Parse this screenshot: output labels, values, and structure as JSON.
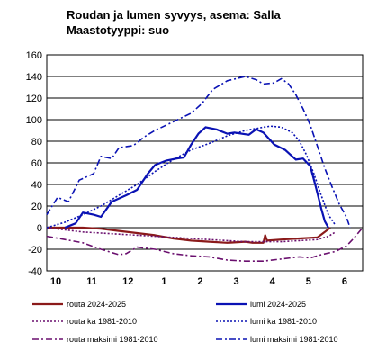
{
  "title": "Roudan ja lumen syvyys, asema: Salla",
  "subtitle": "Maastotyyppi: suo",
  "chart_data": {
    "type": "line",
    "ylim": [
      -40,
      160
    ],
    "yticks": [
      -40,
      -20,
      0,
      20,
      40,
      60,
      80,
      100,
      120,
      140,
      160
    ],
    "xlim": [
      0,
      8.75
    ],
    "xticks": [
      {
        "x": 0,
        "label": "10"
      },
      {
        "x": 1,
        "label": "11"
      },
      {
        "x": 2,
        "label": "12"
      },
      {
        "x": 3,
        "label": "1"
      },
      {
        "x": 4,
        "label": "2"
      },
      {
        "x": 5,
        "label": "3"
      },
      {
        "x": 6,
        "label": "4"
      },
      {
        "x": 7,
        "label": "5"
      },
      {
        "x": 8,
        "label": "6"
      }
    ],
    "grid": "horizontal",
    "legend": "bottom",
    "series": [
      {
        "name": "routa 2024-2025",
        "color": "#8B1A1A",
        "dash": "solid",
        "width": 2.2,
        "points": [
          [
            0,
            0
          ],
          [
            1,
            0
          ],
          [
            1.5,
            -1
          ],
          [
            2,
            -3
          ],
          [
            2.5,
            -5
          ],
          [
            3,
            -7
          ],
          [
            3.5,
            -10
          ],
          [
            4,
            -12
          ],
          [
            4.5,
            -13
          ],
          [
            5,
            -14
          ],
          [
            5.5,
            -13
          ],
          [
            5.7,
            -14
          ],
          [
            6,
            -14
          ],
          [
            6.05,
            -7
          ],
          [
            6.1,
            -12
          ],
          [
            6.5,
            -11
          ],
          [
            7,
            -10
          ],
          [
            7.5,
            -9
          ],
          [
            7.7,
            -4
          ],
          [
            7.85,
            0
          ]
        ]
      },
      {
        "name": "lumi 2024-2025",
        "color": "#0A12B4",
        "dash": "solid",
        "width": 2.2,
        "points": [
          [
            0.5,
            0
          ],
          [
            0.8,
            4
          ],
          [
            1,
            14
          ],
          [
            1.3,
            12
          ],
          [
            1.5,
            10
          ],
          [
            1.8,
            24
          ],
          [
            2.2,
            30
          ],
          [
            2.5,
            35
          ],
          [
            2.8,
            50
          ],
          [
            3,
            58
          ],
          [
            3.3,
            62
          ],
          [
            3.6,
            64
          ],
          [
            3.8,
            65
          ],
          [
            4,
            77
          ],
          [
            4.2,
            87
          ],
          [
            4.4,
            93
          ],
          [
            4.7,
            91
          ],
          [
            5,
            87
          ],
          [
            5.2,
            88
          ],
          [
            5.6,
            86
          ],
          [
            5.8,
            91
          ],
          [
            6,
            88
          ],
          [
            6.3,
            77
          ],
          [
            6.6,
            72
          ],
          [
            6.9,
            63
          ],
          [
            7.1,
            64
          ],
          [
            7.3,
            57
          ],
          [
            7.45,
            38
          ],
          [
            7.6,
            18
          ],
          [
            7.7,
            6
          ],
          [
            7.8,
            0
          ]
        ]
      },
      {
        "name": "routa ka 1981-2010",
        "color": "#6A0F6E",
        "dash": "2,2",
        "width": 1.6,
        "points": [
          [
            0,
            0
          ],
          [
            0.5,
            -2
          ],
          [
            1,
            -4
          ],
          [
            1.5,
            -5
          ],
          [
            2,
            -6
          ],
          [
            2.5,
            -7
          ],
          [
            3,
            -8
          ],
          [
            3.5,
            -9
          ],
          [
            4,
            -10
          ],
          [
            4.5,
            -11
          ],
          [
            5,
            -12
          ],
          [
            5.5,
            -13
          ],
          [
            6,
            -13
          ],
          [
            6.5,
            -13
          ],
          [
            7,
            -12
          ],
          [
            7.5,
            -11
          ],
          [
            7.8,
            -8
          ],
          [
            8,
            -4
          ]
        ]
      },
      {
        "name": "lumi ka 1981-2010",
        "color": "#0A12B4",
        "dash": "2,2",
        "width": 1.6,
        "points": [
          [
            0,
            0
          ],
          [
            0.5,
            5
          ],
          [
            1,
            12
          ],
          [
            1.5,
            20
          ],
          [
            2,
            30
          ],
          [
            2.5,
            40
          ],
          [
            3,
            52
          ],
          [
            3.5,
            63
          ],
          [
            4,
            72
          ],
          [
            4.5,
            78
          ],
          [
            5,
            85
          ],
          [
            5.5,
            90
          ],
          [
            6,
            93
          ],
          [
            6.2,
            94
          ],
          [
            6.5,
            93
          ],
          [
            6.8,
            88
          ],
          [
            7,
            80
          ],
          [
            7.2,
            67
          ],
          [
            7.4,
            50
          ],
          [
            7.6,
            30
          ],
          [
            7.8,
            12
          ],
          [
            8,
            2
          ]
        ]
      },
      {
        "name": "routa maksimi 1981-2010",
        "color": "#6A0F6E",
        "dash": "7,3,2,3",
        "width": 1.6,
        "points": [
          [
            0,
            -8
          ],
          [
            0.5,
            -11
          ],
          [
            1,
            -14
          ],
          [
            1.5,
            -20
          ],
          [
            2,
            -25
          ],
          [
            2.2,
            -24
          ],
          [
            2.5,
            -18
          ],
          [
            3,
            -20
          ],
          [
            3.5,
            -24
          ],
          [
            4,
            -26
          ],
          [
            4.5,
            -27
          ],
          [
            5,
            -30
          ],
          [
            5.5,
            -31
          ],
          [
            6,
            -31
          ],
          [
            6.5,
            -29
          ],
          [
            7,
            -27
          ],
          [
            7.3,
            -28
          ],
          [
            7.6,
            -25
          ],
          [
            8,
            -22
          ],
          [
            8.3,
            -17
          ],
          [
            8.5,
            -10
          ],
          [
            8.75,
            0
          ]
        ]
      },
      {
        "name": "lumi maksimi 1981-2010",
        "color": "#0A12B4",
        "dash": "7,3,2,3",
        "width": 1.6,
        "points": [
          [
            0,
            12
          ],
          [
            0.3,
            28
          ],
          [
            0.6,
            24
          ],
          [
            0.9,
            44
          ],
          [
            1.3,
            50
          ],
          [
            1.5,
            66
          ],
          [
            1.8,
            64
          ],
          [
            2,
            74
          ],
          [
            2.4,
            76
          ],
          [
            2.7,
            84
          ],
          [
            3,
            90
          ],
          [
            3.5,
            98
          ],
          [
            4,
            106
          ],
          [
            4.3,
            115
          ],
          [
            4.6,
            128
          ],
          [
            5,
            136
          ],
          [
            5.5,
            140
          ],
          [
            5.8,
            137
          ],
          [
            6,
            133
          ],
          [
            6.3,
            134
          ],
          [
            6.5,
            138
          ],
          [
            6.7,
            133
          ],
          [
            6.9,
            123
          ],
          [
            7.1,
            110
          ],
          [
            7.3,
            95
          ],
          [
            7.5,
            75
          ],
          [
            7.7,
            55
          ],
          [
            7.9,
            38
          ],
          [
            8.1,
            22
          ],
          [
            8.3,
            10
          ],
          [
            8.4,
            0
          ]
        ]
      }
    ]
  }
}
